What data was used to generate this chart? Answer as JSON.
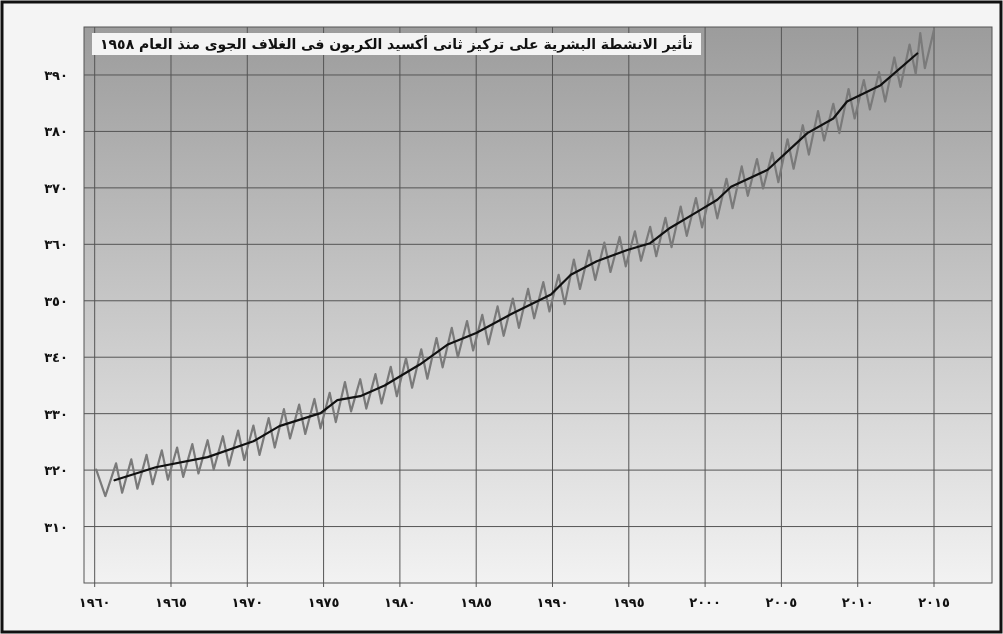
{
  "chart_data": {
    "type": "line",
    "title": "تأثير الانشطة البشرية على تركيز ثانى أكسيد الكربون فى الغلاف الجوى منذ العام ١٩٥٨",
    "xlim": [
      1959.3,
      2018.8
    ],
    "ylim": [
      300,
      398.5
    ],
    "xticks": [
      {
        "value": 1960,
        "label": "١٩٦٠"
      },
      {
        "value": 1965,
        "label": "١٩٦٥"
      },
      {
        "value": 1970,
        "label": "١٩٧٠"
      },
      {
        "value": 1975,
        "label": "١٩٧٥"
      },
      {
        "value": 1980,
        "label": "١٩٨٠"
      },
      {
        "value": 1985,
        "label": "١٩٨٥"
      },
      {
        "value": 1990,
        "label": "١٩٩٠"
      },
      {
        "value": 1995,
        "label": "١٩٩٥"
      },
      {
        "value": 2000,
        "label": "٢٠٠٠"
      },
      {
        "value": 2005,
        "label": "٢٠٠٥"
      },
      {
        "value": 2010,
        "label": "٢٠١٠"
      },
      {
        "value": 2015,
        "label": "٢٠١٥"
      }
    ],
    "yticks": [
      {
        "value": 310,
        "label": "٣١٠"
      },
      {
        "value": 320,
        "label": "٣٢٠"
      },
      {
        "value": 330,
        "label": "٣٣٠"
      },
      {
        "value": 340,
        "label": "٣٤٠"
      },
      {
        "value": 350,
        "label": "٣٥٠"
      },
      {
        "value": 360,
        "label": "٣٦٠"
      },
      {
        "value": 370,
        "label": "٣٧٠"
      },
      {
        "value": 380,
        "label": "٣٨٠"
      },
      {
        "value": 390,
        "label": "٣٩٠"
      }
    ],
    "grid": true,
    "series": [
      {
        "color": "#7a7a7a",
        "x": [
          1960.1,
          1960.7,
          1961.4,
          1961.8,
          1962.4,
          1962.8,
          1963.4,
          1963.8,
          1964.4,
          1964.8,
          1965.4,
          1965.8,
          1966.4,
          1966.8,
          1967.4,
          1967.8,
          1968.4,
          1968.8,
          1969.4,
          1969.8,
          1970.4,
          1970.8,
          1971.4,
          1971.8,
          1972.4,
          1972.8,
          1973.4,
          1973.8,
          1974.4,
          1974.8,
          1975.4,
          1975.8,
          1976.4,
          1976.8,
          1977.4,
          1977.8,
          1978.4,
          1978.8,
          1979.4,
          1979.8,
          1980.4,
          1980.8,
          1981.4,
          1981.8,
          1982.4,
          1982.8,
          1983.4,
          1983.8,
          1984.4,
          1984.8,
          1985.4,
          1985.8,
          1986.4,
          1986.8,
          1987.4,
          1987.8,
          1988.4,
          1988.8,
          1989.4,
          1989.8,
          1990.4,
          1990.8,
          1991.4,
          1991.8,
          1992.4,
          1992.8,
          1993.4,
          1993.8,
          1994.4,
          1994.8,
          1995.4,
          1995.8,
          1996.4,
          1996.8,
          1997.4,
          1997.8,
          1998.4,
          1998.8,
          1999.4,
          1999.8,
          2000.4,
          2000.8,
          2001.4,
          2001.8,
          2002.4,
          2002.8,
          2003.4,
          2003.8,
          2004.4,
          2004.8,
          2005.4,
          2005.8,
          2006.4,
          2006.8,
          2007.4,
          2007.8,
          2008.4,
          2008.8,
          2009.4,
          2009.8,
          2010.4,
          2010.8,
          2011.4,
          2011.8,
          2012.4,
          2012.8,
          2013.4,
          2013.8,
          2014.1,
          2014.4,
          2015.0
        ],
        "values": [
          320.1,
          315.4,
          321.2,
          316.0,
          321.9,
          316.7,
          322.7,
          317.5,
          323.5,
          318.3,
          324.0,
          318.8,
          324.6,
          319.4,
          325.3,
          320.1,
          326.0,
          320.8,
          327.0,
          321.8,
          327.9,
          322.7,
          329.2,
          324.0,
          330.8,
          325.6,
          331.6,
          326.4,
          332.6,
          327.4,
          333.7,
          328.5,
          335.6,
          330.4,
          336.1,
          330.9,
          337.0,
          331.8,
          338.3,
          333.1,
          339.8,
          334.6,
          341.4,
          336.2,
          343.4,
          338.2,
          345.2,
          340.0,
          346.4,
          341.2,
          347.5,
          342.3,
          349.0,
          343.8,
          350.4,
          345.2,
          352.1,
          346.9,
          353.3,
          348.1,
          354.6,
          349.4,
          357.3,
          352.1,
          358.9,
          353.7,
          360.3,
          355.1,
          361.3,
          356.1,
          362.3,
          357.1,
          363.1,
          357.9,
          364.7,
          359.5,
          366.7,
          361.5,
          368.2,
          363.0,
          369.8,
          364.6,
          371.6,
          366.4,
          373.8,
          368.6,
          375.1,
          369.9,
          376.2,
          371.0,
          378.6,
          373.4,
          381.1,
          375.9,
          383.6,
          378.4,
          384.9,
          379.7,
          387.5,
          382.3,
          389.1,
          383.9,
          390.5,
          385.3,
          393.1,
          387.9,
          395.4,
          390.2,
          397.4,
          391.2,
          398.0
        ]
      },
      {
        "color": "#111111",
        "x": [
          1961.3,
          1964,
          1967.4,
          1970.4,
          1972.1,
          1974.8,
          1975.9,
          1977.4,
          1979,
          1981.3,
          1983.1,
          1985,
          1987.4,
          1989.9,
          1991.2,
          1992.9,
          1994.9,
          1996.4,
          1997.7,
          1999.7,
          2000.8,
          2001.7,
          2004.1,
          2006.7,
          2008.4,
          2009.3,
          2011.5,
          2013.9
        ],
        "values": [
          318.2,
          320.5,
          322.3,
          325.1,
          327.8,
          330.1,
          332.4,
          333.1,
          335.0,
          338.7,
          342.2,
          344.3,
          347.8,
          351.1,
          354.6,
          357.0,
          359.0,
          360.2,
          362.9,
          366.1,
          367.9,
          370.2,
          373.2,
          379.7,
          382.3,
          385.3,
          388.2,
          393.8
        ]
      }
    ]
  }
}
